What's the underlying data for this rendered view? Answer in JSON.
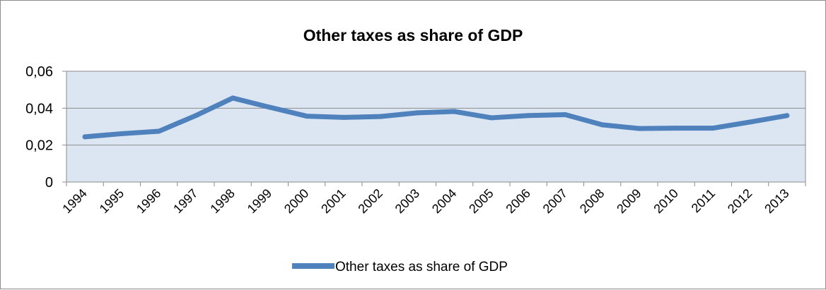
{
  "chart_data": {
    "type": "line",
    "title": "Other taxes as share of GDP",
    "xlabel": "",
    "ylabel": "",
    "categories": [
      "1994",
      "1995",
      "1996",
      "1997",
      "1998",
      "1999",
      "2000",
      "2001",
      "2002",
      "2003",
      "2004",
      "2005",
      "2006",
      "2007",
      "2008",
      "2009",
      "2010",
      "2011",
      "2012",
      "2013"
    ],
    "series": [
      {
        "name": "Other taxes as share of GDP",
        "color": "#4f81bd",
        "values": [
          0.0245,
          0.0262,
          0.0275,
          0.036,
          0.0455,
          0.0405,
          0.0357,
          0.035,
          0.0355,
          0.0375,
          0.0382,
          0.0348,
          0.036,
          0.0365,
          0.031,
          0.029,
          0.0292,
          0.0292,
          0.0325,
          0.036
        ]
      }
    ],
    "ylim": [
      0,
      0.06
    ],
    "yticks": [
      "0",
      "0,02",
      "0,04",
      "0,06"
    ],
    "ytick_values": [
      0,
      0.02,
      0.04,
      0.06
    ],
    "grid": true,
    "plot_background": "#dce6f2",
    "legend_position": "bottom"
  }
}
